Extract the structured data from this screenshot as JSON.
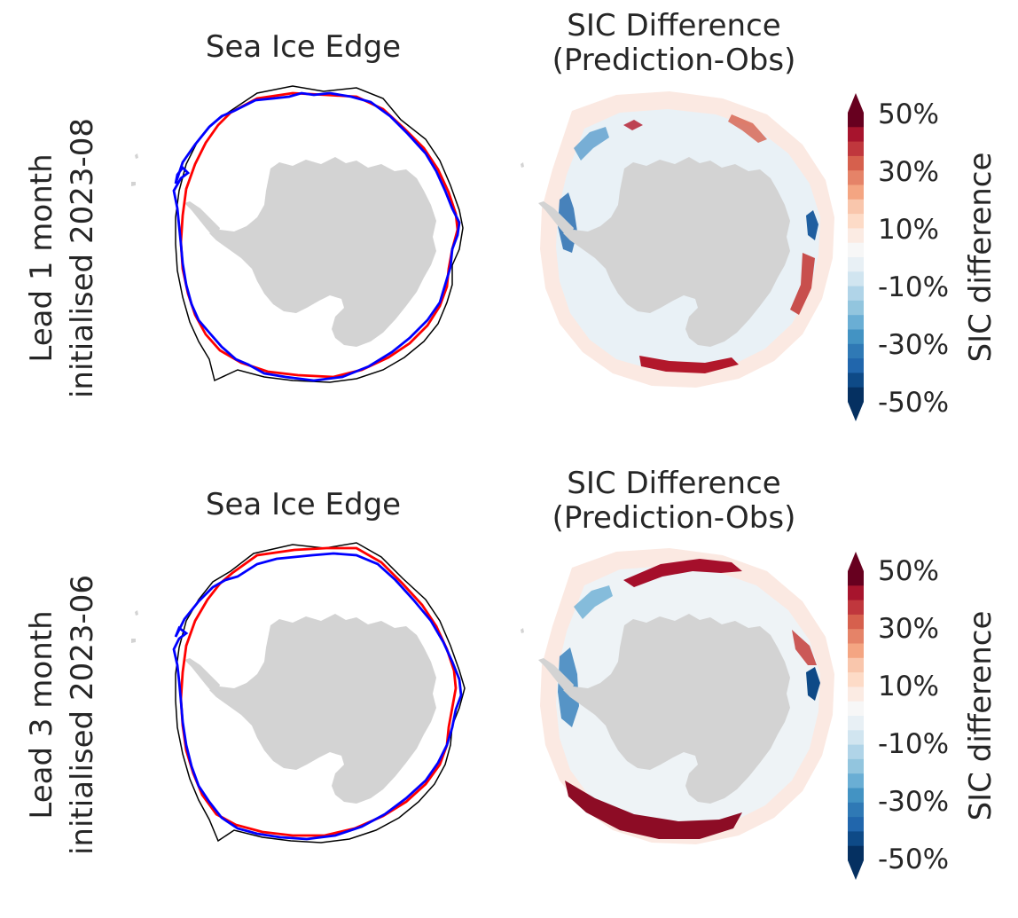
{
  "rows": [
    {
      "lead_label_line1": "Lead 1 month",
      "lead_label_line2": "initialised 2023-08",
      "left_title": "Sea Ice Edge",
      "right_title_line1": "SIC Difference",
      "right_title_line2": "(Prediction-Obs)"
    },
    {
      "lead_label_line1": "Lead 3 month",
      "lead_label_line2": "initialised 2023-06",
      "left_title": "Sea Ice Edge",
      "right_title_line1": "SIC Difference",
      "right_title_line2": "(Prediction-Obs)"
    }
  ],
  "colorbar": {
    "label": "SIC difference",
    "ticks": [
      "50%",
      "30%",
      "10%",
      "-10%",
      "-30%",
      "-50%"
    ],
    "colors": [
      "#67001f",
      "#a7142d",
      "#c0373d",
      "#d6604d",
      "#e58368",
      "#f4a582",
      "#f9c6ac",
      "#fddbc7",
      "#fbebe3",
      "#f7f7f7",
      "#e8f0f5",
      "#d1e5f0",
      "#b0d4e8",
      "#92c5de",
      "#6aaed4",
      "#4393c3",
      "#2f79b5",
      "#2166ac",
      "#0e4a87",
      "#053061"
    ]
  },
  "legend_colors": {
    "observed": "#000000",
    "prediction_red": "#ff0000",
    "prediction_blue": "#0000ff",
    "land": "#d3d3d3"
  }
}
